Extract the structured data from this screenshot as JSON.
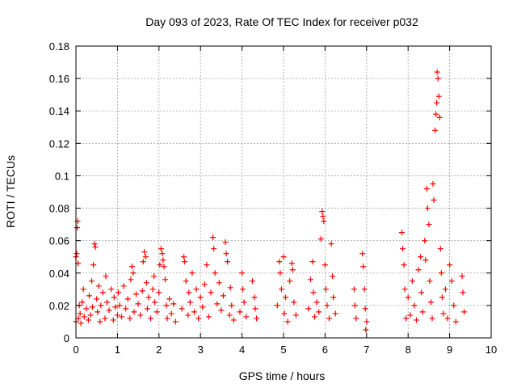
{
  "colors": {
    "background": "#ffffff",
    "axis": "#000000",
    "grid": "#a0a0a0",
    "points": "#ff0000"
  },
  "chart_data": {
    "type": "scatter",
    "title": "Day 093 of 2023, Rate Of TEC Index for receiver p032",
    "xlabel": "GPS time / hours",
    "ylabel": "ROTI / TECUs",
    "xlim": [
      0,
      10
    ],
    "ylim": [
      0,
      0.18
    ],
    "x_ticks": [
      0,
      1,
      2,
      3,
      4,
      5,
      6,
      7,
      8,
      9,
      10
    ],
    "x_tick_labels": [
      "0",
      "1",
      "2",
      "3",
      "4",
      "5",
      "6",
      "7",
      "8",
      "9",
      "10"
    ],
    "y_ticks": [
      0,
      0.02,
      0.04,
      0.06,
      0.08,
      0.1,
      0.12,
      0.14,
      0.16,
      0.18
    ],
    "y_tick_labels": [
      "0",
      "0.02",
      "0.04",
      "0.06",
      "0.08",
      "0.1",
      "0.12",
      "0.14",
      "0.16",
      "0.18"
    ],
    "grid": true,
    "marker": "+",
    "series": [
      {
        "name": "ROTI",
        "points": [
          [
            0.0,
            0.01
          ],
          [
            0.0,
            0.05
          ],
          [
            0.02,
            0.052
          ],
          [
            0.03,
            0.068
          ],
          [
            0.04,
            0.072
          ],
          [
            0.05,
            0.046
          ],
          [
            0.06,
            0.012
          ],
          [
            0.08,
            0.02
          ],
          [
            0.1,
            0.015
          ],
          [
            0.12,
            0.009
          ],
          [
            0.15,
            0.022
          ],
          [
            0.18,
            0.03
          ],
          [
            0.2,
            0.013
          ],
          [
            0.25,
            0.018
          ],
          [
            0.3,
            0.011
          ],
          [
            0.32,
            0.026
          ],
          [
            0.35,
            0.014
          ],
          [
            0.38,
            0.035
          ],
          [
            0.4,
            0.019
          ],
          [
            0.42,
            0.045
          ],
          [
            0.45,
            0.058
          ],
          [
            0.47,
            0.056
          ],
          [
            0.5,
            0.024
          ],
          [
            0.52,
            0.016
          ],
          [
            0.55,
            0.032
          ],
          [
            0.58,
            0.01
          ],
          [
            0.6,
            0.02
          ],
          [
            0.65,
            0.028
          ],
          [
            0.7,
            0.012
          ],
          [
            0.72,
            0.038
          ],
          [
            0.75,
            0.022
          ],
          [
            0.8,
            0.017
          ],
          [
            0.85,
            0.03
          ],
          [
            0.9,
            0.011
          ],
          [
            0.92,
            0.025
          ],
          [
            0.95,
            0.019
          ],
          [
            1.0,
            0.014
          ],
          [
            1.02,
            0.028
          ],
          [
            1.05,
            0.02
          ],
          [
            1.1,
            0.013
          ],
          [
            1.15,
            0.032
          ],
          [
            1.2,
            0.018
          ],
          [
            1.25,
            0.024
          ],
          [
            1.3,
            0.012
          ],
          [
            1.32,
            0.036
          ],
          [
            1.35,
            0.044
          ],
          [
            1.38,
            0.04
          ],
          [
            1.4,
            0.016
          ],
          [
            1.45,
            0.027
          ],
          [
            1.5,
            0.021
          ],
          [
            1.55,
            0.014
          ],
          [
            1.6,
            0.029
          ],
          [
            1.62,
            0.047
          ],
          [
            1.65,
            0.053
          ],
          [
            1.68,
            0.05
          ],
          [
            1.7,
            0.034
          ],
          [
            1.72,
            0.018
          ],
          [
            1.75,
            0.025
          ],
          [
            1.8,
            0.012
          ],
          [
            1.85,
            0.03
          ],
          [
            1.88,
            0.038
          ],
          [
            1.9,
            0.022
          ],
          [
            1.95,
            0.016
          ],
          [
            2.0,
            0.028
          ],
          [
            2.02,
            0.045
          ],
          [
            2.05,
            0.055
          ],
          [
            2.08,
            0.052
          ],
          [
            2.1,
            0.048
          ],
          [
            2.12,
            0.044
          ],
          [
            2.15,
            0.036
          ],
          [
            2.18,
            0.02
          ],
          [
            2.2,
            0.012
          ],
          [
            2.25,
            0.024
          ],
          [
            2.3,
            0.015
          ],
          [
            2.35,
            0.021
          ],
          [
            2.4,
            0.01
          ],
          [
            2.55,
            0.018
          ],
          [
            2.6,
            0.05
          ],
          [
            2.62,
            0.047
          ],
          [
            2.65,
            0.035
          ],
          [
            2.7,
            0.014
          ],
          [
            2.72,
            0.028
          ],
          [
            2.75,
            0.022
          ],
          [
            2.8,
            0.04
          ],
          [
            2.85,
            0.016
          ],
          [
            2.9,
            0.03
          ],
          [
            2.95,
            0.012
          ],
          [
            3.0,
            0.025
          ],
          [
            3.05,
            0.019
          ],
          [
            3.1,
            0.033
          ],
          [
            3.15,
            0.045
          ],
          [
            3.2,
            0.013
          ],
          [
            3.25,
            0.028
          ],
          [
            3.3,
            0.062
          ],
          [
            3.32,
            0.055
          ],
          [
            3.35,
            0.04
          ],
          [
            3.4,
            0.021
          ],
          [
            3.45,
            0.034
          ],
          [
            3.5,
            0.017
          ],
          [
            3.55,
            0.026
          ],
          [
            3.6,
            0.059
          ],
          [
            3.62,
            0.052
          ],
          [
            3.65,
            0.047
          ],
          [
            3.7,
            0.014
          ],
          [
            3.72,
            0.031
          ],
          [
            3.75,
            0.02
          ],
          [
            3.8,
            0.011
          ],
          [
            3.95,
            0.016
          ],
          [
            4.0,
            0.04
          ],
          [
            4.02,
            0.03
          ],
          [
            4.05,
            0.022
          ],
          [
            4.1,
            0.013
          ],
          [
            4.25,
            0.035
          ],
          [
            4.3,
            0.025
          ],
          [
            4.32,
            0.018
          ],
          [
            4.35,
            0.012
          ],
          [
            4.85,
            0.02
          ],
          [
            4.9,
            0.047
          ],
          [
            4.92,
            0.04
          ],
          [
            4.95,
            0.03
          ],
          [
            5.0,
            0.05
          ],
          [
            5.02,
            0.015
          ],
          [
            5.05,
            0.025
          ],
          [
            5.1,
            0.01
          ],
          [
            5.15,
            0.035
          ],
          [
            5.2,
            0.046
          ],
          [
            5.22,
            0.042
          ],
          [
            5.25,
            0.022
          ],
          [
            5.3,
            0.014
          ],
          [
            5.6,
            0.018
          ],
          [
            5.65,
            0.036
          ],
          [
            5.7,
            0.047
          ],
          [
            5.72,
            0.028
          ],
          [
            5.75,
            0.013
          ],
          [
            5.8,
            0.022
          ],
          [
            5.85,
            0.016
          ],
          [
            5.9,
            0.061
          ],
          [
            5.93,
            0.078
          ],
          [
            5.95,
            0.075
          ],
          [
            5.97,
            0.072
          ],
          [
            6.0,
            0.045
          ],
          [
            6.02,
            0.03
          ],
          [
            6.05,
            0.02
          ],
          [
            6.1,
            0.012
          ],
          [
            6.15,
            0.058
          ],
          [
            6.18,
            0.038
          ],
          [
            6.2,
            0.025
          ],
          [
            6.25,
            0.015
          ],
          [
            6.7,
            0.03
          ],
          [
            6.72,
            0.02
          ],
          [
            6.75,
            0.012
          ],
          [
            6.9,
            0.052
          ],
          [
            6.92,
            0.044
          ],
          [
            6.95,
            0.03
          ],
          [
            6.97,
            0.018
          ],
          [
            6.98,
            0.005
          ],
          [
            7.0,
            0.01
          ],
          [
            7.85,
            0.065
          ],
          [
            7.87,
            0.055
          ],
          [
            7.9,
            0.045
          ],
          [
            7.92,
            0.03
          ],
          [
            7.95,
            0.012
          ],
          [
            8.0,
            0.025
          ],
          [
            8.05,
            0.014
          ],
          [
            8.1,
            0.035
          ],
          [
            8.15,
            0.02
          ],
          [
            8.2,
            0.011
          ],
          [
            8.25,
            0.042
          ],
          [
            8.3,
            0.05
          ],
          [
            8.32,
            0.028
          ],
          [
            8.35,
            0.016
          ],
          [
            8.4,
            0.06
          ],
          [
            8.42,
            0.048
          ],
          [
            8.45,
            0.092
          ],
          [
            8.47,
            0.08
          ],
          [
            8.5,
            0.07
          ],
          [
            8.52,
            0.035
          ],
          [
            8.55,
            0.022
          ],
          [
            8.58,
            0.012
          ],
          [
            8.6,
            0.095
          ],
          [
            8.62,
            0.085
          ],
          [
            8.65,
            0.128
          ],
          [
            8.67,
            0.138
          ],
          [
            8.69,
            0.145
          ],
          [
            8.7,
            0.164
          ],
          [
            8.72,
            0.16
          ],
          [
            8.74,
            0.149
          ],
          [
            8.76,
            0.136
          ],
          [
            8.78,
            0.055
          ],
          [
            8.8,
            0.04
          ],
          [
            8.82,
            0.025
          ],
          [
            8.85,
            0.015
          ],
          [
            8.9,
            0.03
          ],
          [
            8.95,
            0.012
          ],
          [
            9.0,
            0.045
          ],
          [
            9.05,
            0.035
          ],
          [
            9.1,
            0.02
          ],
          [
            9.15,
            0.01
          ],
          [
            9.3,
            0.038
          ],
          [
            9.32,
            0.028
          ],
          [
            9.35,
            0.016
          ]
        ]
      }
    ]
  }
}
